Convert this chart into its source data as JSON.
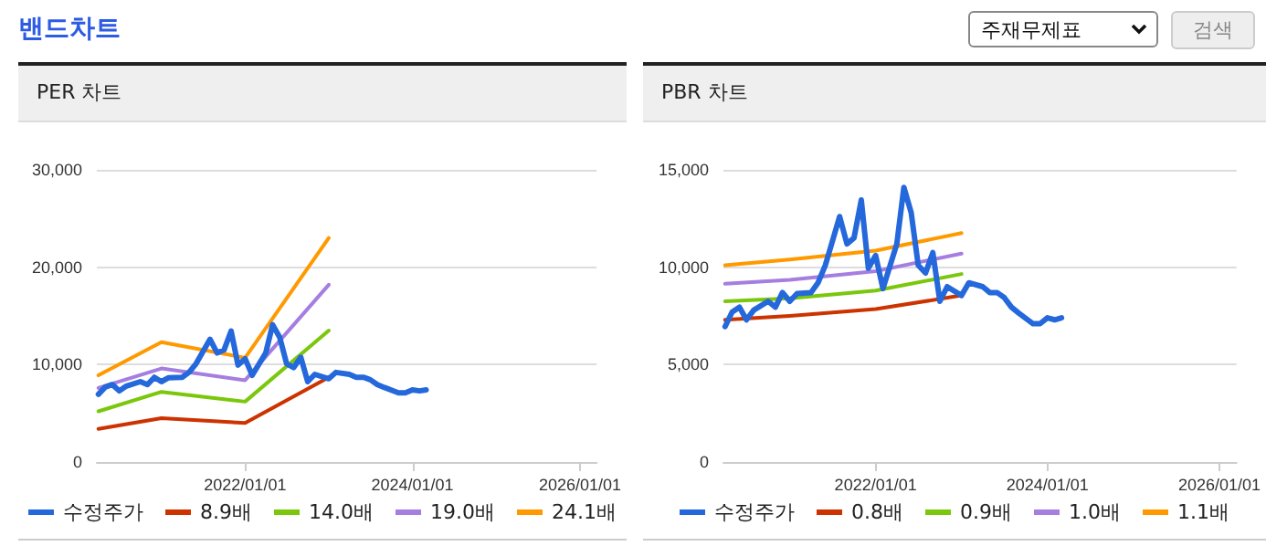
{
  "chart_data": [
    {
      "type": "other",
      "title": "밴드차트",
      "annotations": [
        "주재무제표",
        "검색"
      ]
    },
    {
      "type": "line",
      "title": "PER 차트",
      "legend": "bottom",
      "grid": "y",
      "marker": "none",
      "line_style": "solid",
      "xlim": [
        "2020-03-25",
        "2026-03-15"
      ],
      "xticks": [
        {
          "value": "2022-01-01",
          "label": "2022/01/01"
        },
        {
          "value": "2024-01-01",
          "label": "2024/01/01"
        },
        {
          "value": "2026-01-01",
          "label": "2026/01/01"
        }
      ],
      "ylim": [
        0,
        30000
      ],
      "yticks": [
        0,
        {
          "value": 10000,
          "label": "10,000"
        },
        {
          "value": 20000,
          "label": "20,000"
        },
        {
          "value": 30000,
          "label": "30,000"
        }
      ],
      "series": [
        {
          "name": "수정주가",
          "color": "#2468dc",
          "x": [
            "2020-04",
            "2020-05",
            "2020-06",
            "2020-07",
            "2020-08",
            "2020-10",
            "2020-11",
            "2020-12",
            "2021-01",
            "2021-02",
            "2021-04",
            "2021-05",
            "2021-06",
            "2021-08",
            "2021-09",
            "2021-10",
            "2021-11",
            "2021-12",
            "2022-01",
            "2022-02",
            "2022-04",
            "2022-05",
            "2022-06",
            "2022-07",
            "2022-08",
            "2022-09",
            "2022-10",
            "2022-11",
            "2023-01",
            "2023-02",
            "2023-04",
            "2023-05",
            "2023-06",
            "2023-07",
            "2023-08",
            "2023-09",
            "2023-11",
            "2023-12",
            "2024-01",
            "2024-02",
            "2024-03"
          ],
          "values": [
            6950,
            7700,
            7950,
            7300,
            7800,
            8250,
            7950,
            8700,
            8250,
            8650,
            8700,
            9200,
            10100,
            12600,
            11200,
            11500,
            13450,
            9950,
            10600,
            8900,
            11200,
            14100,
            12800,
            10100,
            9700,
            10750,
            8250,
            9000,
            8550,
            9200,
            9000,
            8700,
            8700,
            8450,
            7950,
            7650,
            7100,
            7100,
            7400,
            7300,
            7400
          ]
        },
        {
          "name": "8.9배",
          "color": "#cc3300",
          "x": [
            "2020-04",
            "2021-01",
            "2022-01",
            "2023-01"
          ],
          "values": [
            3400,
            4500,
            4000,
            8700
          ]
        },
        {
          "name": "14.0배",
          "color": "#7ac70c",
          "x": [
            "2020-04",
            "2021-01",
            "2022-01",
            "2023-01"
          ],
          "values": [
            5200,
            7200,
            6200,
            13500
          ]
        },
        {
          "name": "19.0배",
          "color": "#a57ee0",
          "x": [
            "2020-04",
            "2021-01",
            "2022-01",
            "2023-01"
          ],
          "values": [
            7600,
            9600,
            8400,
            18200
          ]
        },
        {
          "name": "24.1배",
          "color": "#ff9900",
          "x": [
            "2020-04",
            "2021-01",
            "2022-01",
            "2023-01"
          ],
          "values": [
            8900,
            12300,
            10700,
            23000
          ]
        }
      ]
    },
    {
      "type": "line",
      "title": "PBR 차트",
      "legend": "bottom",
      "grid": "y",
      "marker": "none",
      "line_style": "solid",
      "xlim": [
        "2020-03-25",
        "2026-03-15"
      ],
      "xticks": [
        {
          "value": "2022-01-01",
          "label": "2022/01/01"
        },
        {
          "value": "2024-01-01",
          "label": "2024/01/01"
        },
        {
          "value": "2026-01-01",
          "label": "2026/01/01"
        }
      ],
      "ylim": [
        0,
        15000
      ],
      "yticks": [
        0,
        {
          "value": 5000,
          "label": "5,000"
        },
        {
          "value": 10000,
          "label": "10,000"
        },
        {
          "value": 15000,
          "label": "15,000"
        }
      ],
      "series": [
        {
          "name": "수정주가",
          "color": "#2468dc",
          "x": [
            "2020-04",
            "2020-05",
            "2020-06",
            "2020-07",
            "2020-08",
            "2020-10",
            "2020-11",
            "2020-12",
            "2021-01",
            "2021-02",
            "2021-04",
            "2021-05",
            "2021-06",
            "2021-08",
            "2021-09",
            "2021-10",
            "2021-11",
            "2021-12",
            "2022-01",
            "2022-02",
            "2022-04",
            "2022-05",
            "2022-06",
            "2022-07",
            "2022-08",
            "2022-09",
            "2022-10",
            "2022-11",
            "2023-01",
            "2023-02",
            "2023-04",
            "2023-05",
            "2023-06",
            "2023-07",
            "2023-08",
            "2023-09",
            "2023-11",
            "2023-12",
            "2024-01",
            "2024-02",
            "2024-03"
          ],
          "values": [
            6950,
            7700,
            7950,
            7300,
            7800,
            8250,
            7950,
            8700,
            8250,
            8650,
            8700,
            9200,
            10100,
            12600,
            11200,
            11500,
            13450,
            9950,
            10600,
            8900,
            11200,
            14100,
            12800,
            10100,
            9700,
            10750,
            8250,
            9000,
            8550,
            9200,
            9000,
            8700,
            8700,
            8450,
            7950,
            7650,
            7100,
            7100,
            7400,
            7300,
            7400
          ]
        },
        {
          "name": "0.8배",
          "color": "#cc3300",
          "x": [
            "2020-04",
            "2021-01",
            "2022-01",
            "2023-01"
          ],
          "values": [
            7300,
            7500,
            7850,
            8550
          ]
        },
        {
          "name": "0.9배",
          "color": "#7ac70c",
          "x": [
            "2020-04",
            "2021-01",
            "2022-01",
            "2023-01"
          ],
          "values": [
            8250,
            8400,
            8800,
            9650
          ]
        },
        {
          "name": "1.0배",
          "color": "#a57ee0",
          "x": [
            "2020-04",
            "2021-01",
            "2022-01",
            "2023-01"
          ],
          "values": [
            9150,
            9350,
            9800,
            10700
          ]
        },
        {
          "name": "1.1배",
          "color": "#ff9900",
          "x": [
            "2020-04",
            "2021-01",
            "2022-01",
            "2023-01"
          ],
          "values": [
            10100,
            10400,
            10850,
            11750
          ]
        }
      ]
    }
  ]
}
